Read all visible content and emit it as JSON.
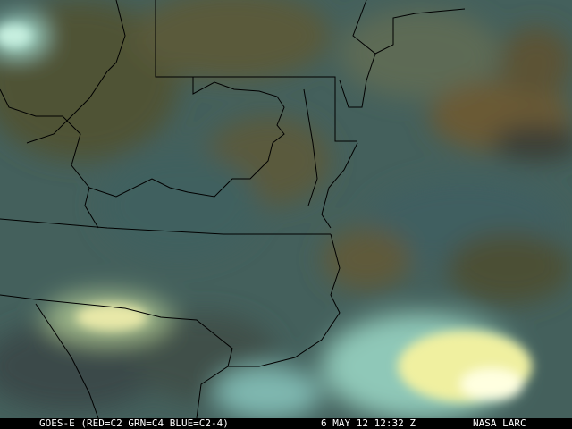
{
  "image": {
    "description_type": "satellite composite",
    "colors": {
      "land_dark": "#4a4a2e",
      "ocean": "#3a6a72",
      "cloud_bright": "#f0f0a0",
      "cloud_cyan": "#8fd6d6",
      "border": "#000000"
    }
  },
  "caption": {
    "product": "GOES-E (RED=C2 GRN=C4 BLUE=C2-4)",
    "datetime": "6 MAY 12 12:32 Z",
    "source": "NASA LARC"
  }
}
